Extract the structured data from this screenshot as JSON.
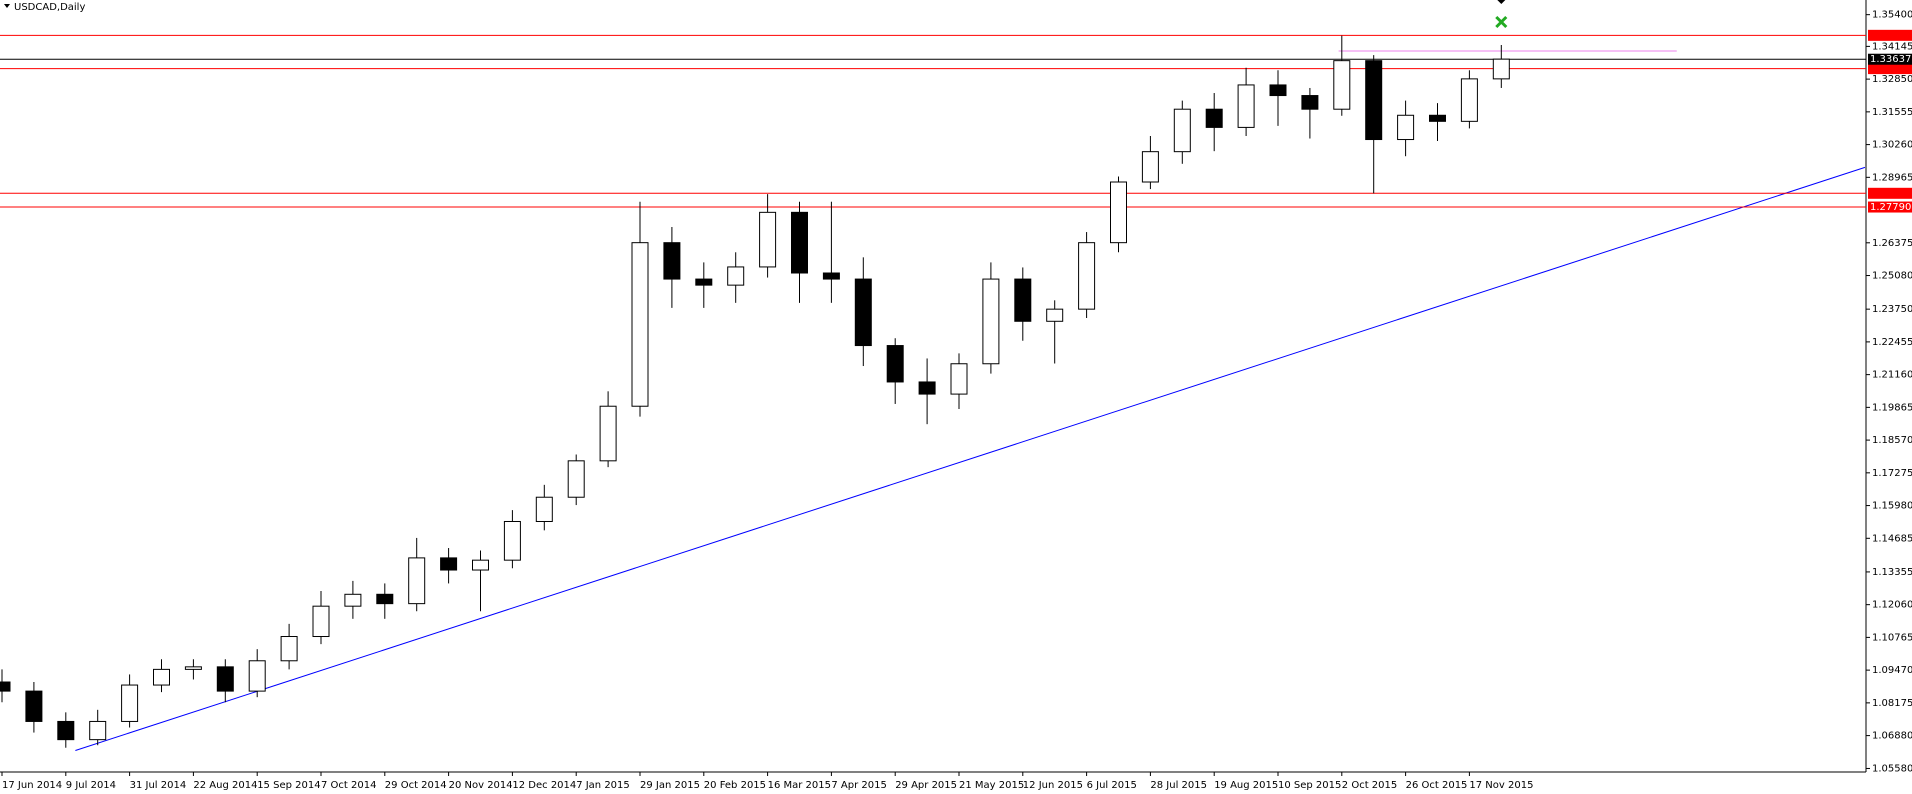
{
  "chart_data": {
    "type": "candlestick",
    "title": "USDCAD,Daily",
    "categories": [
      "17 Jun 2014",
      null,
      "9 Jul 2014",
      null,
      "31 Jul 2014",
      null,
      "22 Aug 2014",
      null,
      "15 Sep 2014",
      null,
      "7 Oct 2014",
      null,
      "29 Oct 2014",
      null,
      "20 Nov 2014",
      null,
      "12 Dec 2014",
      null,
      "7 Jan 2015",
      null,
      "29 Jan 2015",
      null,
      "20 Feb 2015",
      null,
      "16 Mar 2015",
      null,
      "7 Apr 2015",
      null,
      "29 Apr 2015",
      null,
      "21 May 2015",
      null,
      "12 Jun 2015",
      null,
      "6 Jul 2015",
      null,
      "28 Jul 2015",
      null,
      "19 Aug 2015",
      null,
      "10 Sep 2015",
      null,
      "2 Oct 2015",
      null,
      "26 Oct 2015",
      null,
      "17 Nov 2015",
      null
    ],
    "open": [
      1.09,
      1.0864,
      1.0744,
      1.0672,
      1.0744,
      1.0888,
      1.095,
      1.096,
      1.0864,
      1.0984,
      1.108,
      1.12,
      1.1247,
      1.121,
      1.1391,
      1.1343,
      1.1382,
      1.1535,
      1.1631,
      1.1775,
      1.1991,
      1.2638,
      1.2494,
      1.247,
      1.2542,
      1.2758,
      1.2518,
      1.2494,
      1.2231,
      1.2087,
      1.2039,
      1.2159,
      1.2494,
      1.2327,
      1.2375,
      1.2638,
      1.2878,
      1.2998,
      1.3166,
      1.3094,
      1.3262,
      1.322,
      1.3166,
      1.3358,
      1.3046,
      1.3142,
      1.3118,
      1.3286
    ],
    "high": [
      1.095,
      1.09,
      1.078,
      1.079,
      1.093,
      1.099,
      1.099,
      1.099,
      1.103,
      1.113,
      1.126,
      1.13,
      1.129,
      1.147,
      1.143,
      1.142,
      1.158,
      1.168,
      1.18,
      1.205,
      1.28,
      1.27,
      1.256,
      1.26,
      1.283,
      1.28,
      1.28,
      1.258,
      1.226,
      1.218,
      1.22,
      1.256,
      1.254,
      1.241,
      1.268,
      1.29,
      1.306,
      1.32,
      1.323,
      1.333,
      1.332,
      1.325,
      1.3457,
      1.338,
      1.32,
      1.319,
      1.332,
      1.342
    ],
    "low": [
      1.082,
      1.07,
      1.064,
      1.065,
      1.072,
      1.086,
      1.091,
      1.082,
      1.084,
      1.095,
      1.105,
      1.115,
      1.115,
      1.118,
      1.129,
      1.118,
      1.135,
      1.15,
      1.16,
      1.175,
      1.195,
      1.238,
      1.238,
      1.24,
      1.25,
      1.24,
      1.24,
      1.215,
      1.2,
      1.192,
      1.198,
      1.212,
      1.225,
      1.216,
      1.234,
      1.26,
      1.285,
      1.295,
      1.3,
      1.306,
      1.31,
      1.305,
      1.314,
      1.2833,
      1.298,
      1.304,
      1.309,
      1.325
    ],
    "close": [
      1.0864,
      1.0744,
      1.0672,
      1.0744,
      1.0888,
      1.095,
      1.096,
      1.0864,
      1.0984,
      1.108,
      1.12,
      1.1247,
      1.121,
      1.1391,
      1.1343,
      1.1382,
      1.1535,
      1.1631,
      1.1775,
      1.1991,
      1.2638,
      1.2494,
      1.247,
      1.2542,
      1.2758,
      1.2518,
      1.2494,
      1.2231,
      1.2087,
      1.2039,
      1.2159,
      1.2494,
      1.2327,
      1.2375,
      1.2638,
      1.2878,
      1.2998,
      1.3166,
      1.3094,
      1.3262,
      1.322,
      1.3166,
      1.3358,
      1.3046,
      1.3142,
      1.3118,
      1.3286,
      1.3364
    ],
    "up_color": "#ffffff",
    "down_color": "#000000",
    "ylim": [
      1.0544,
      1.3598
    ],
    "yticks": [
      {
        "value": 1.354,
        "label": "1.35400"
      },
      1.34145,
      {
        "value": 1.3285,
        "label": "1.32850"
      },
      1.31555,
      {
        "value": 1.3026,
        "label": "1.30260"
      },
      1.28965,
      1.26375,
      {
        "value": 1.2508,
        "label": "1.25080"
      },
      {
        "value": 1.2375,
        "label": "1.23750"
      },
      1.22455,
      {
        "value": 1.2116,
        "label": "1.21160"
      },
      1.19865,
      {
        "value": 1.1857,
        "label": "1.18570"
      },
      1.17275,
      {
        "value": 1.1598,
        "label": "1.15980"
      },
      1.14685,
      1.13355,
      {
        "value": 1.1206,
        "label": "1.12060"
      },
      1.10765,
      {
        "value": 1.0947,
        "label": "1.09470"
      },
      1.08175,
      {
        "value": 1.0688,
        "label": "1.06880"
      },
      {
        "value": 1.0558,
        "label": "1.05580"
      }
    ],
    "levels": [
      {
        "value": 1.34582,
        "color": "#ff0000"
      },
      {
        "value": 1.33266,
        "color": "#ff0000"
      },
      {
        "value": 1.28333,
        "color": "#ff0000"
      },
      {
        "value": 1.2779,
        "label": "1.27790",
        "color": "#ff0000"
      }
    ],
    "current": {
      "value": 1.33637,
      "color": "#000000"
    },
    "segment": {
      "x": [
        41.9,
        52.5
      ],
      "values": [
        1.3396,
        1.3396
      ],
      "color": "#ee82ee"
    },
    "trendline": {
      "x": [
        2.3,
        58.4
      ],
      "values": [
        1.0629,
        1.2936
      ],
      "color": "#0000ff"
    }
  }
}
